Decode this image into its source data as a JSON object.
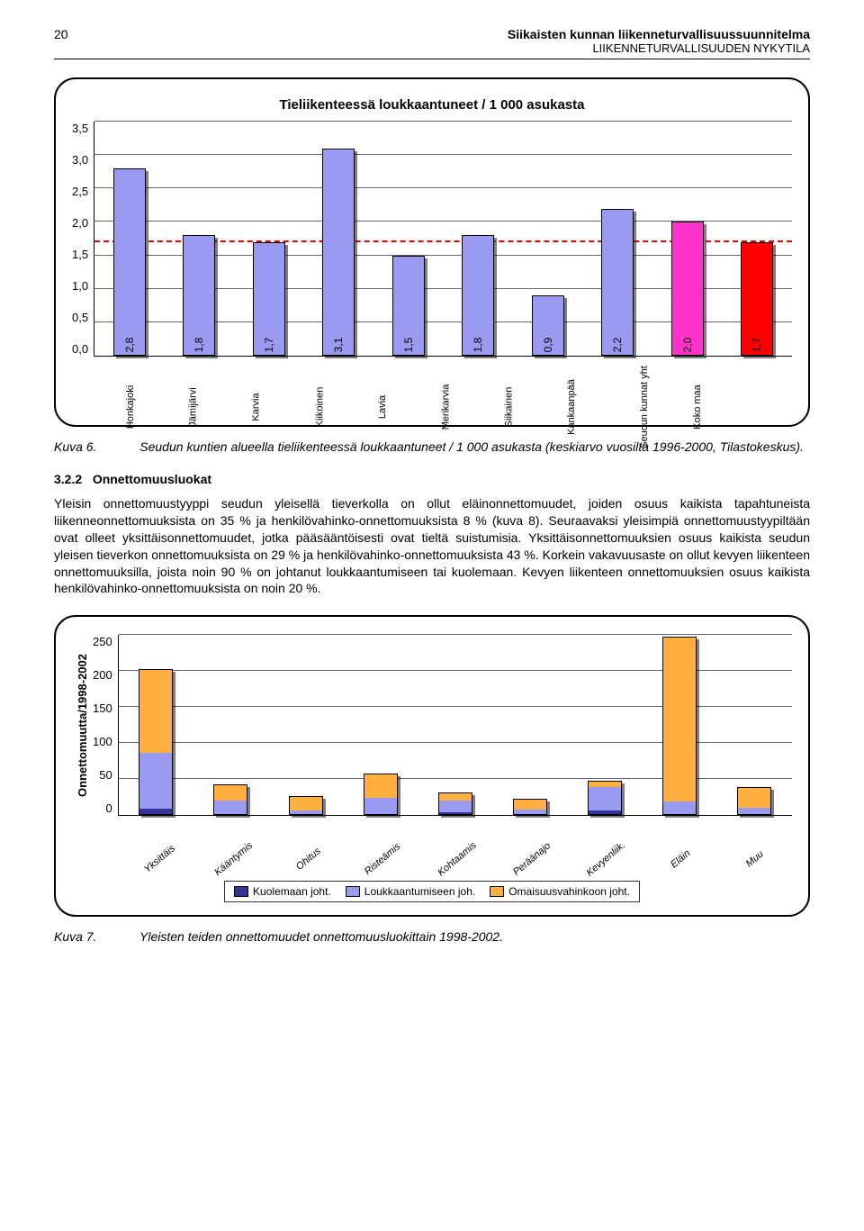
{
  "header": {
    "page_number": "20",
    "title": "Siikaisten kunnan liikenneturvallisuussuunnitelma",
    "subtitle": "LIIKENNETURVALLISUUDEN NYKYTILA"
  },
  "chart1": {
    "title": "Tieliikenteessä loukkaantuneet / 1 000 asukasta",
    "ymax": 3.5,
    "ystep": 0.5,
    "yticks": [
      "3,5",
      "3,0",
      "2,5",
      "2,0",
      "1,5",
      "1,0",
      "0,5",
      "0,0"
    ],
    "refline_value": 1.7,
    "refline_color": "#e00000",
    "background": "#ffffff",
    "grid_color": "#666666",
    "categories": [
      "Honkajoki",
      "Jämijärvi",
      "Karvia",
      "Kiikoinen",
      "Lavia",
      "Merikarvia",
      "Siikainen",
      "Kankaanpää",
      "Seudun\nkunnat yht",
      "Koko maa"
    ],
    "values": [
      2.8,
      1.8,
      1.7,
      3.1,
      1.5,
      1.8,
      0.9,
      2.2,
      2.0,
      1.7
    ],
    "value_labels": [
      "2,8",
      "1,8",
      "1,7",
      "3,1",
      "1,5",
      "1,8",
      "0,9",
      "2,2",
      "2,0",
      "1,7"
    ],
    "colors": [
      "#9a9af0",
      "#9a9af0",
      "#9a9af0",
      "#9a9af0",
      "#9a9af0",
      "#9a9af0",
      "#9a9af0",
      "#9a9af0",
      "#ff33cc",
      "#ff0000"
    ],
    "bar_border": "#000000",
    "category_count": 10
  },
  "caption1": {
    "label": "Kuva 6.",
    "text": "Seudun kuntien alueella tieliikenteessä loukkaantuneet / 1 000 asukasta (keskiarvo vuosilta 1996-2000, Tilastokeskus)."
  },
  "section": {
    "number": "3.2.2",
    "title": "Onnettomuusluokat"
  },
  "body": "Yleisin onnettomuustyyppi seudun yleisellä tieverkolla on ollut eläinonnettomuudet, joiden osuus kaikista tapahtuneista liikenneonnettomuuksista on 35 % ja henkilövahinko-onnettomuuksista 8 % (kuva 8). Seuraavaksi yleisimpiä onnettomuustyypiltään ovat olleet yksittäisonnettomuudet, jotka pääsääntöisesti ovat tieltä suistumisia. Yksittäisonnettomuuksien osuus kaikista seudun yleisen tieverkon onnettomuuksista on 29 % ja henkilövahinko-onnettomuuksista 43 %. Korkein vakavuusaste on ollut kevyen liikenteen onnettomuuksilla, joista noin 90 % on johtanut loukkaantumiseen tai kuolemaan. Kevyen liikenteen onnettomuuksien osuus kaikista henkilövahinko-onnettomuuksista on noin 20 %.",
  "chart2": {
    "ylabel": "Onnettomuutta/1998-2002",
    "ymax": 250,
    "ystep": 50,
    "yticks": [
      "250",
      "200",
      "150",
      "100",
      "50",
      "0"
    ],
    "background": "#ffffff",
    "grid_color": "#666666",
    "categories": [
      "Yksittäis",
      "Kääntymis",
      "Ohitus",
      "Risteämis",
      "Kohtaamis",
      "Peräänajo",
      "Kevyenliik.",
      "Eläin",
      "Muu"
    ],
    "series": [
      {
        "name": "Kuolemaan joht.",
        "color": "#333399",
        "values": [
          8,
          1,
          0,
          1,
          3,
          0,
          6,
          0,
          1
        ]
      },
      {
        "name": "Loukkaantumiseen joh.",
        "color": "#9a9af0",
        "values": [
          78,
          18,
          6,
          22,
          16,
          7,
          32,
          18,
          8
        ]
      },
      {
        "name": "Omaisuusvahinkoon joht.",
        "color": "#ffb040",
        "values": [
          114,
          22,
          18,
          32,
          10,
          13,
          8,
          228,
          28
        ]
      }
    ],
    "totals": [
      200,
      41,
      24,
      55,
      29,
      20,
      46,
      246,
      37
    ],
    "legend": [
      "Kuolemaan joht.",
      "Loukkaantumiseen joh.",
      "Omaisuusvahinkoon joht."
    ],
    "legend_colors": [
      "#333399",
      "#9a9af0",
      "#ffb040"
    ]
  },
  "caption2": {
    "label": "Kuva 7.",
    "text": "Yleisten teiden onnettomuudet onnettomuusluokittain 1998-2002."
  }
}
